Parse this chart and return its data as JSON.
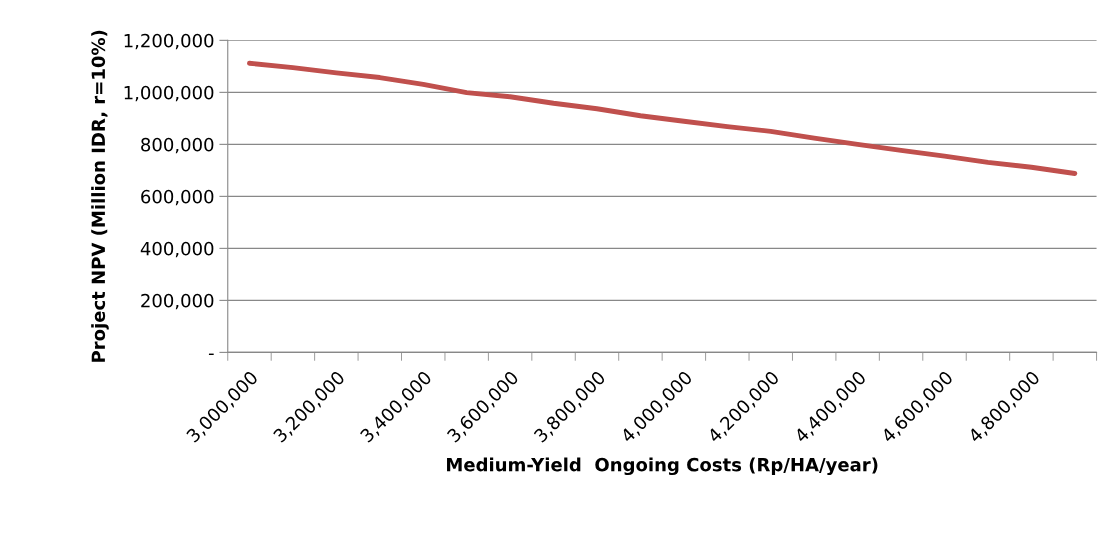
{
  "chart_data": {
    "type": "line",
    "xlabel": "Medium-Yield  Ongoing Costs (Rp/HA/year)",
    "ylabel": "Project NPV (Million IDR, r=10%)",
    "categories": [
      "3,000,000",
      null,
      "3,200,000",
      null,
      "3,400,000",
      null,
      "3,600,000",
      null,
      "3,800,000",
      null,
      "4,000,000",
      null,
      "4,200,000",
      null,
      "4,400,000",
      null,
      "4,600,000",
      null,
      "4,800,000",
      null
    ],
    "series": [
      {
        "color": "#c0504d",
        "values": [
          1112000,
          1095000,
          1075000,
          1057000,
          1031000,
          999000,
          983000,
          958000,
          937000,
          910000,
          889000,
          868000,
          850000,
          824000,
          800000,
          777000,
          755000,
          731000,
          712000,
          688000
        ]
      }
    ],
    "ylim": [
      0,
      1200000
    ],
    "yticks": [
      {
        "value": 0,
        "label": "-"
      },
      {
        "value": 200000,
        "label": "200,000"
      },
      {
        "value": 400000,
        "label": "400,000"
      },
      {
        "value": 600000,
        "label": "600,000"
      },
      {
        "value": 800000,
        "label": "800,000"
      },
      {
        "value": 1000000,
        "label": "1,000,000"
      },
      {
        "value": 1200000,
        "label": "1,200,000"
      }
    ],
    "grid": "y",
    "marker": "none",
    "line_style": "solid",
    "legend": false
  }
}
